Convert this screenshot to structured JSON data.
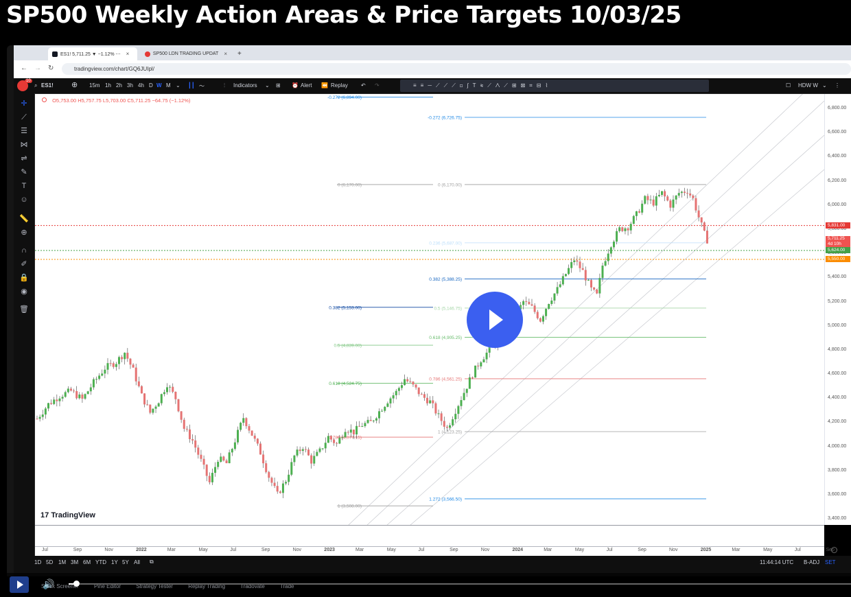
{
  "video": {
    "title": "SP500 Weekly Action Areas & Price Targets 10/03/25",
    "progress": 0.01
  },
  "browser": {
    "tabs": [
      {
        "label": "ES1! 5,711.25 ▼ −1.12% ⋯",
        "active": true,
        "icon_color": "#131722"
      },
      {
        "label": "SP500 LDN TRADING UPDAT",
        "active": false,
        "icon_color": "#e53935"
      }
    ],
    "url": "tradingview.com/chart/GQ6JUIpl/"
  },
  "toolbar": {
    "symbol": "ES1!",
    "intervals": [
      "15m",
      "1h",
      "2h",
      "3h",
      "4h",
      "D",
      "W",
      "M"
    ],
    "active_interval": "W",
    "indicators_label": "Indicators",
    "alert_label": "Alert",
    "replay_label": "Replay",
    "layout_name": "HDW W",
    "notif_count": "10"
  },
  "legend": {
    "ohlc": "O5,753.00 H5,757.75 L5,703.00 C5,711.25 −64.75 (−1.12%)"
  },
  "chart_data": {
    "type": "candlestick",
    "timeframe": "weekly",
    "symbol": "ES1!",
    "ylim": [
      3350,
      6920
    ],
    "y_ticks": [
      "6,800.00",
      "6,600.00",
      "6,400.00",
      "6,200.00",
      "6,000.00",
      "5,800.00",
      "5,600.00",
      "5,400.00",
      "5,200.00",
      "5,000.00",
      "4,800.00",
      "4,600.00",
      "4,400.00",
      "4,200.00",
      "4,000.00",
      "3,800.00",
      "3,600.00",
      "3,400.00"
    ],
    "x_ticks": [
      "Jul",
      "Sep",
      "Nov",
      "2022",
      "Mar",
      "May",
      "Jul",
      "Sep",
      "Nov",
      "2023",
      "Mar",
      "May",
      "Jul",
      "Sep",
      "Nov",
      "2024",
      "Mar",
      "May",
      "Jul",
      "Sep",
      "Nov",
      "2025",
      "Mar",
      "May",
      "Jul",
      "Sep"
    ],
    "price_path": [
      [
        0,
        4230
      ],
      [
        4,
        4350
      ],
      [
        8,
        4420
      ],
      [
        12,
        4460
      ],
      [
        16,
        4390
      ],
      [
        20,
        4530
      ],
      [
        24,
        4650
      ],
      [
        28,
        4700
      ],
      [
        31,
        4780
      ],
      [
        34,
        4630
      ],
      [
        37,
        4420
      ],
      [
        40,
        4280
      ],
      [
        43,
        4380
      ],
      [
        46,
        4520
      ],
      [
        49,
        4400
      ],
      [
        52,
        4150
      ],
      [
        55,
        4050
      ],
      [
        58,
        3880
      ],
      [
        61,
        3700
      ],
      [
        64,
        3900
      ],
      [
        67,
        3860
      ],
      [
        70,
        4050
      ],
      [
        73,
        4240
      ],
      [
        76,
        4100
      ],
      [
        79,
        3950
      ],
      [
        82,
        3750
      ],
      [
        85,
        3600
      ],
      [
        88,
        3720
      ],
      [
        91,
        3920
      ],
      [
        94,
        4000
      ],
      [
        97,
        3880
      ],
      [
        100,
        3960
      ],
      [
        103,
        4080
      ],
      [
        106,
        4020
      ],
      [
        109,
        4150
      ],
      [
        112,
        4120
      ],
      [
        115,
        4180
      ],
      [
        118,
        4200
      ],
      [
        121,
        4290
      ],
      [
        124,
        4380
      ],
      [
        127,
        4450
      ],
      [
        130,
        4560
      ],
      [
        133,
        4500
      ],
      [
        136,
        4420
      ],
      [
        139,
        4370
      ],
      [
        142,
        4250
      ],
      [
        145,
        4150
      ],
      [
        148,
        4300
      ],
      [
        151,
        4450
      ],
      [
        154,
        4600
      ],
      [
        157,
        4720
      ],
      [
        160,
        4800
      ],
      [
        163,
        4880
      ],
      [
        166,
        4960
      ],
      [
        169,
        5080
      ],
      [
        172,
        5200
      ],
      [
        175,
        5150
      ],
      [
        178,
        5050
      ],
      [
        181,
        5200
      ],
      [
        184,
        5300
      ],
      [
        187,
        5430
      ],
      [
        190,
        5550
      ],
      [
        193,
        5450
      ],
      [
        196,
        5300
      ],
      [
        198,
        5250
      ],
      [
        200,
        5500
      ],
      [
        203,
        5680
      ],
      [
        206,
        5800
      ],
      [
        209,
        5820
      ],
      [
        212,
        5920
      ],
      [
        215,
        6050
      ],
      [
        218,
        6020
      ],
      [
        221,
        6100
      ],
      [
        224,
        6000
      ],
      [
        227,
        6100
      ],
      [
        230,
        6120
      ],
      [
        232,
        6050
      ],
      [
        234,
        5900
      ],
      [
        236,
        5760
      ],
      [
        237,
        5711
      ]
    ],
    "levels": [
      {
        "label": "5,831.00",
        "value": 5831,
        "color": "#e53935",
        "style": "dotted"
      },
      {
        "label": "5,624.00",
        "value": 5624,
        "color": "#43a047",
        "style": "dotted"
      },
      {
        "label": "5,550.00",
        "value": 5550,
        "color": "#fb8c00",
        "style": "dotted"
      }
    ],
    "current": {
      "label": "5,711.25",
      "sub": "4d 10h",
      "value": 5711.25,
      "color": "#ef5350"
    },
    "fib_set_a": [
      {
        "label": "-0.272 (6,894.00)",
        "value": 6894,
        "color": "#1e88e5"
      },
      {
        "label": "0 (6,170.00)",
        "value": 6170,
        "color": "#9e9e9e"
      },
      {
        "label": "0.382 (5,153.00)",
        "value": 5153,
        "color": "#0d47a1"
      },
      {
        "label": "0.5 (4,839.00)",
        "value": 4839,
        "color": "#81c784"
      },
      {
        "label": "0.618 (4,524.75)",
        "value": 4524.75,
        "color": "#4caf50"
      },
      {
        "label": "0.786 (4,077.15)",
        "value": 4077.15,
        "color": "#e57373"
      },
      {
        "label": "1 (3,508.00)",
        "value": 3508,
        "color": "#9e9e9e"
      }
    ],
    "fib_set_b": [
      {
        "label": "-0.272 (6,726.75)",
        "value": 6726.75,
        "color": "#1e88e5"
      },
      {
        "label": "0 (6,170.00)",
        "value": 6170,
        "color": "#9e9e9e"
      },
      {
        "label": "0.236 (5,687.00)",
        "value": 5687,
        "color": "#bbdefb"
      },
      {
        "label": "0.382 (5,388.25)",
        "value": 5388.25,
        "color": "#1565c0"
      },
      {
        "label": "0.5 (5,146.75)",
        "value": 5146.75,
        "color": "#a5d6a7"
      },
      {
        "label": "0.618 (4,905.25)",
        "value": 4905.25,
        "color": "#66bb6a"
      },
      {
        "label": "0.786 (4,561.25)",
        "value": 4561.25,
        "color": "#e57373"
      },
      {
        "label": "1 (4,123.25)",
        "value": 4123.25,
        "color": "#9e9e9e"
      },
      {
        "label": "1.272 (3,566.50)",
        "value": 3566.5,
        "color": "#1e88e5"
      }
    ]
  },
  "bottombar": {
    "ranges": [
      "1D",
      "5D",
      "1M",
      "3M",
      "6M",
      "YTD",
      "1Y",
      "5Y",
      "All"
    ],
    "time": "11:44:14 UTC",
    "badj": "B-ADJ",
    "set": "SET"
  },
  "tv_brand": "TradingView",
  "footer_tabs": [
    "Stock Screener",
    "Pine Editor",
    "Strategy Tester",
    "Replay Trading",
    "Tradovate",
    "Trade"
  ]
}
